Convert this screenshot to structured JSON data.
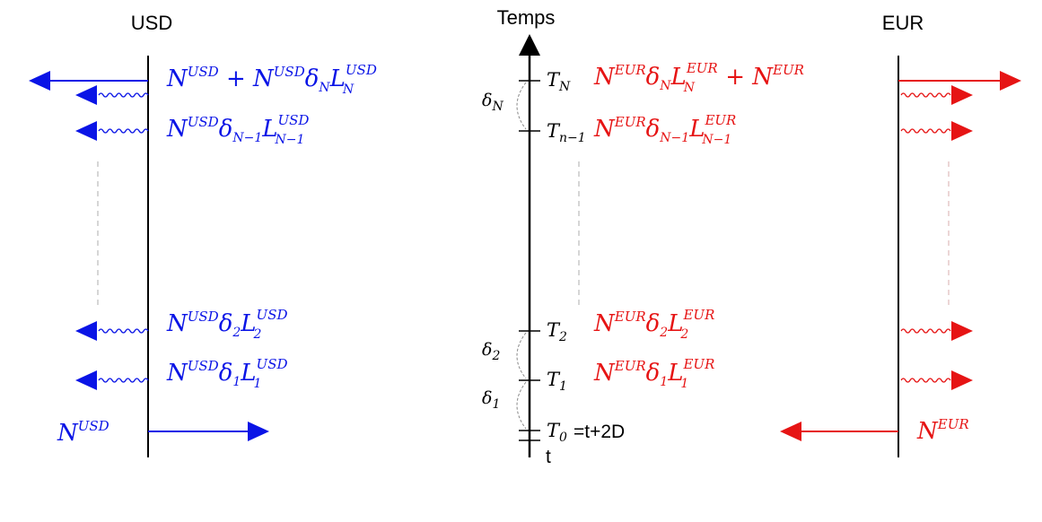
{
  "headers": {
    "usd": "USD",
    "time": "Temps",
    "eur": "EUR"
  },
  "colors": {
    "usd": "#0a14e6",
    "eur": "#e61414",
    "axis": "#000000",
    "dash": "#c8c8c8"
  },
  "time_labels": {
    "t0_suffix": "=t+2D",
    "t": "t",
    "delta": "δ",
    "T": "T",
    "sub_N": "N",
    "sub_n1": "n−1",
    "sub_2": "2",
    "sub_1": "1",
    "sub_0": "0",
    "d_N": "N",
    "d_2": "2",
    "d_1": "1"
  },
  "formula_parts": {
    "N": "N",
    "L": "L",
    "delta": "δ",
    "plus": "+",
    "usd": "USD",
    "eur": "EUR",
    "sub_N": "N",
    "sub_N1": "N−1",
    "sub_2": "2",
    "sub_1": "1"
  }
}
